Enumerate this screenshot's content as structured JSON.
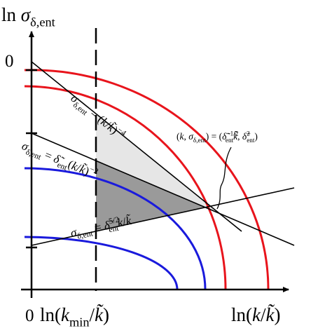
{
  "axes": {
    "y_label": [
      {
        "text": "ln "
      },
      {
        "text": "σ",
        "style": "italic"
      },
      {
        "text": "δ,ent",
        "shift": "sub"
      }
    ],
    "y_zero": "0",
    "x_zero": "0",
    "x_min_label": [
      {
        "text": "ln("
      },
      {
        "text": "k",
        "style": "italic"
      },
      {
        "text": "min",
        "shift": "sub"
      },
      {
        "text": "/"
      },
      {
        "text": "k̃",
        "style": "italic"
      },
      {
        "text": ")"
      }
    ],
    "x_label": [
      {
        "text": "ln("
      },
      {
        "text": "k",
        "style": "italic"
      },
      {
        "text": "/"
      },
      {
        "text": "k̃",
        "style": "italic"
      },
      {
        "text": ")"
      }
    ]
  },
  "lines": [
    {
      "label": [
        {
          "text": "σ",
          "style": "italic"
        },
        {
          "text": "δ,ent",
          "shift": "sub"
        },
        {
          "text": " = ("
        },
        {
          "text": "k",
          "style": "italic"
        },
        {
          "text": "/"
        },
        {
          "text": "k̃",
          "style": "italic"
        },
        {
          "text": ")"
        },
        {
          "text": "−4",
          "shift": "sup"
        }
      ]
    },
    {
      "label": [
        {
          "text": "σ",
          "style": "italic"
        },
        {
          "text": "δ,ent",
          "shift": "sub"
        },
        {
          "text": " = "
        },
        {
          "text": "δ̃",
          "style": "italic"
        },
        {
          "text": "ent",
          "shift": "sub"
        },
        {
          "text": "("
        },
        {
          "text": "k",
          "style": "italic"
        },
        {
          "text": "/"
        },
        {
          "text": "k̃",
          "style": "italic"
        },
        {
          "text": ")"
        },
        {
          "text": "−2",
          "shift": "sup"
        }
      ]
    },
    {
      "label": [
        {
          "text": "σ",
          "style": "italic"
        },
        {
          "text": "δ,ent",
          "shift": "sub"
        },
        {
          "text": " = "
        },
        {
          "text": "δ̃",
          "style": "italic"
        },
        {
          "text": "5/2",
          "shift": "sup"
        },
        {
          "text": "ent",
          "shift": "sub"
        },
        {
          "text": "k",
          "style": "italic"
        },
        {
          "text": "/"
        },
        {
          "text": "k̃",
          "style": "italic"
        }
      ]
    }
  ],
  "annotation": [
    {
      "text": "("
    },
    {
      "text": "k",
      "style": "italic"
    },
    {
      "text": ", "
    },
    {
      "text": "σ",
      "style": "italic"
    },
    {
      "text": "δ,ent",
      "shift": "sub"
    },
    {
      "text": ") = ("
    },
    {
      "text": "δ̃",
      "style": "italic"
    },
    {
      "text": "−1/2",
      "shift": "sup"
    },
    {
      "text": "ent",
      "shift": "sub"
    },
    {
      "text": "k̃",
      "style": "italic"
    },
    {
      "text": ", "
    },
    {
      "text": "δ̃",
      "style": "italic"
    },
    {
      "text": "2",
      "shift": "sup"
    },
    {
      "text": "ent",
      "shift": "sub"
    },
    {
      "text": ")"
    }
  ]
}
